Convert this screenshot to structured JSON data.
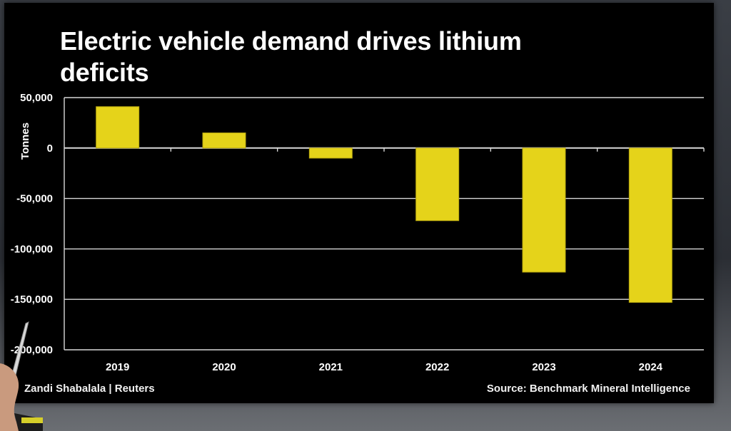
{
  "chart_data": {
    "type": "bar",
    "title": "Electric vehicle demand drives lithium deficits",
    "ylabel": "Tonnes",
    "xlabel": "",
    "categories": [
      "2019",
      "2020",
      "2021",
      "2022",
      "2023",
      "2024"
    ],
    "values": [
      41000,
      15000,
      -10000,
      -72000,
      -123000,
      -153000
    ],
    "ylim": [
      -200000,
      50000
    ],
    "yticks": [
      50000,
      0,
      -50000,
      -100000,
      -150000,
      -200000
    ],
    "ytick_labels": [
      "50,000",
      "0",
      "-50,000",
      "-100,000",
      "-150,000",
      "-200,000"
    ],
    "grid": true,
    "bar_color": "#e5d31a",
    "background": "#000000"
  },
  "footer": {
    "byline": "Zandi Shabalala | Reuters",
    "source": "Source: Benchmark Mineral Intelligence"
  },
  "colors": {
    "title_text": "#ffffff",
    "grid": "#d8d8d8",
    "axis_text": "#ffffff"
  }
}
